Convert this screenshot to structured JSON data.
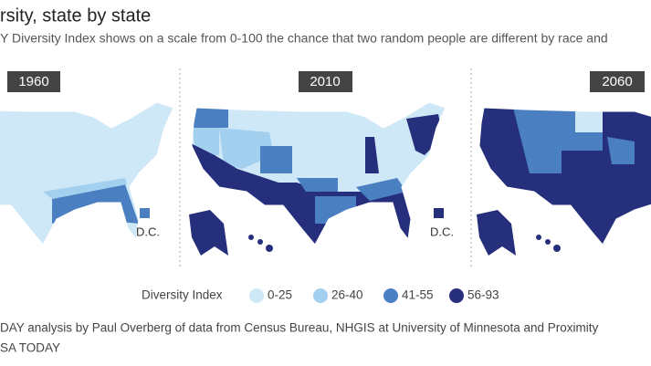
{
  "header": {
    "title": "rsity, state by state",
    "subtitle": "Y Diversity Index shows on a scale from 0-100 the chance that two random people are different by race and"
  },
  "maps": [
    {
      "year": "1960",
      "dc_label": "D.C."
    },
    {
      "year": "2010",
      "dc_label": "D.C."
    },
    {
      "year": "2060"
    }
  ],
  "legend": {
    "title": "Diversity Index",
    "items": [
      {
        "label": "0-25",
        "color": "#cfe8f7"
      },
      {
        "label": "26-40",
        "color": "#a3d0ef"
      },
      {
        "label": "41-55",
        "color": "#4a80c2"
      },
      {
        "label": "56-93",
        "color": "#262f7c"
      }
    ]
  },
  "footer": {
    "source": "DAY analysis by Paul Overberg of data from Census Bureau, NHGIS at University of Minnesota and Proximity",
    "credit": "SA TODAY"
  }
}
